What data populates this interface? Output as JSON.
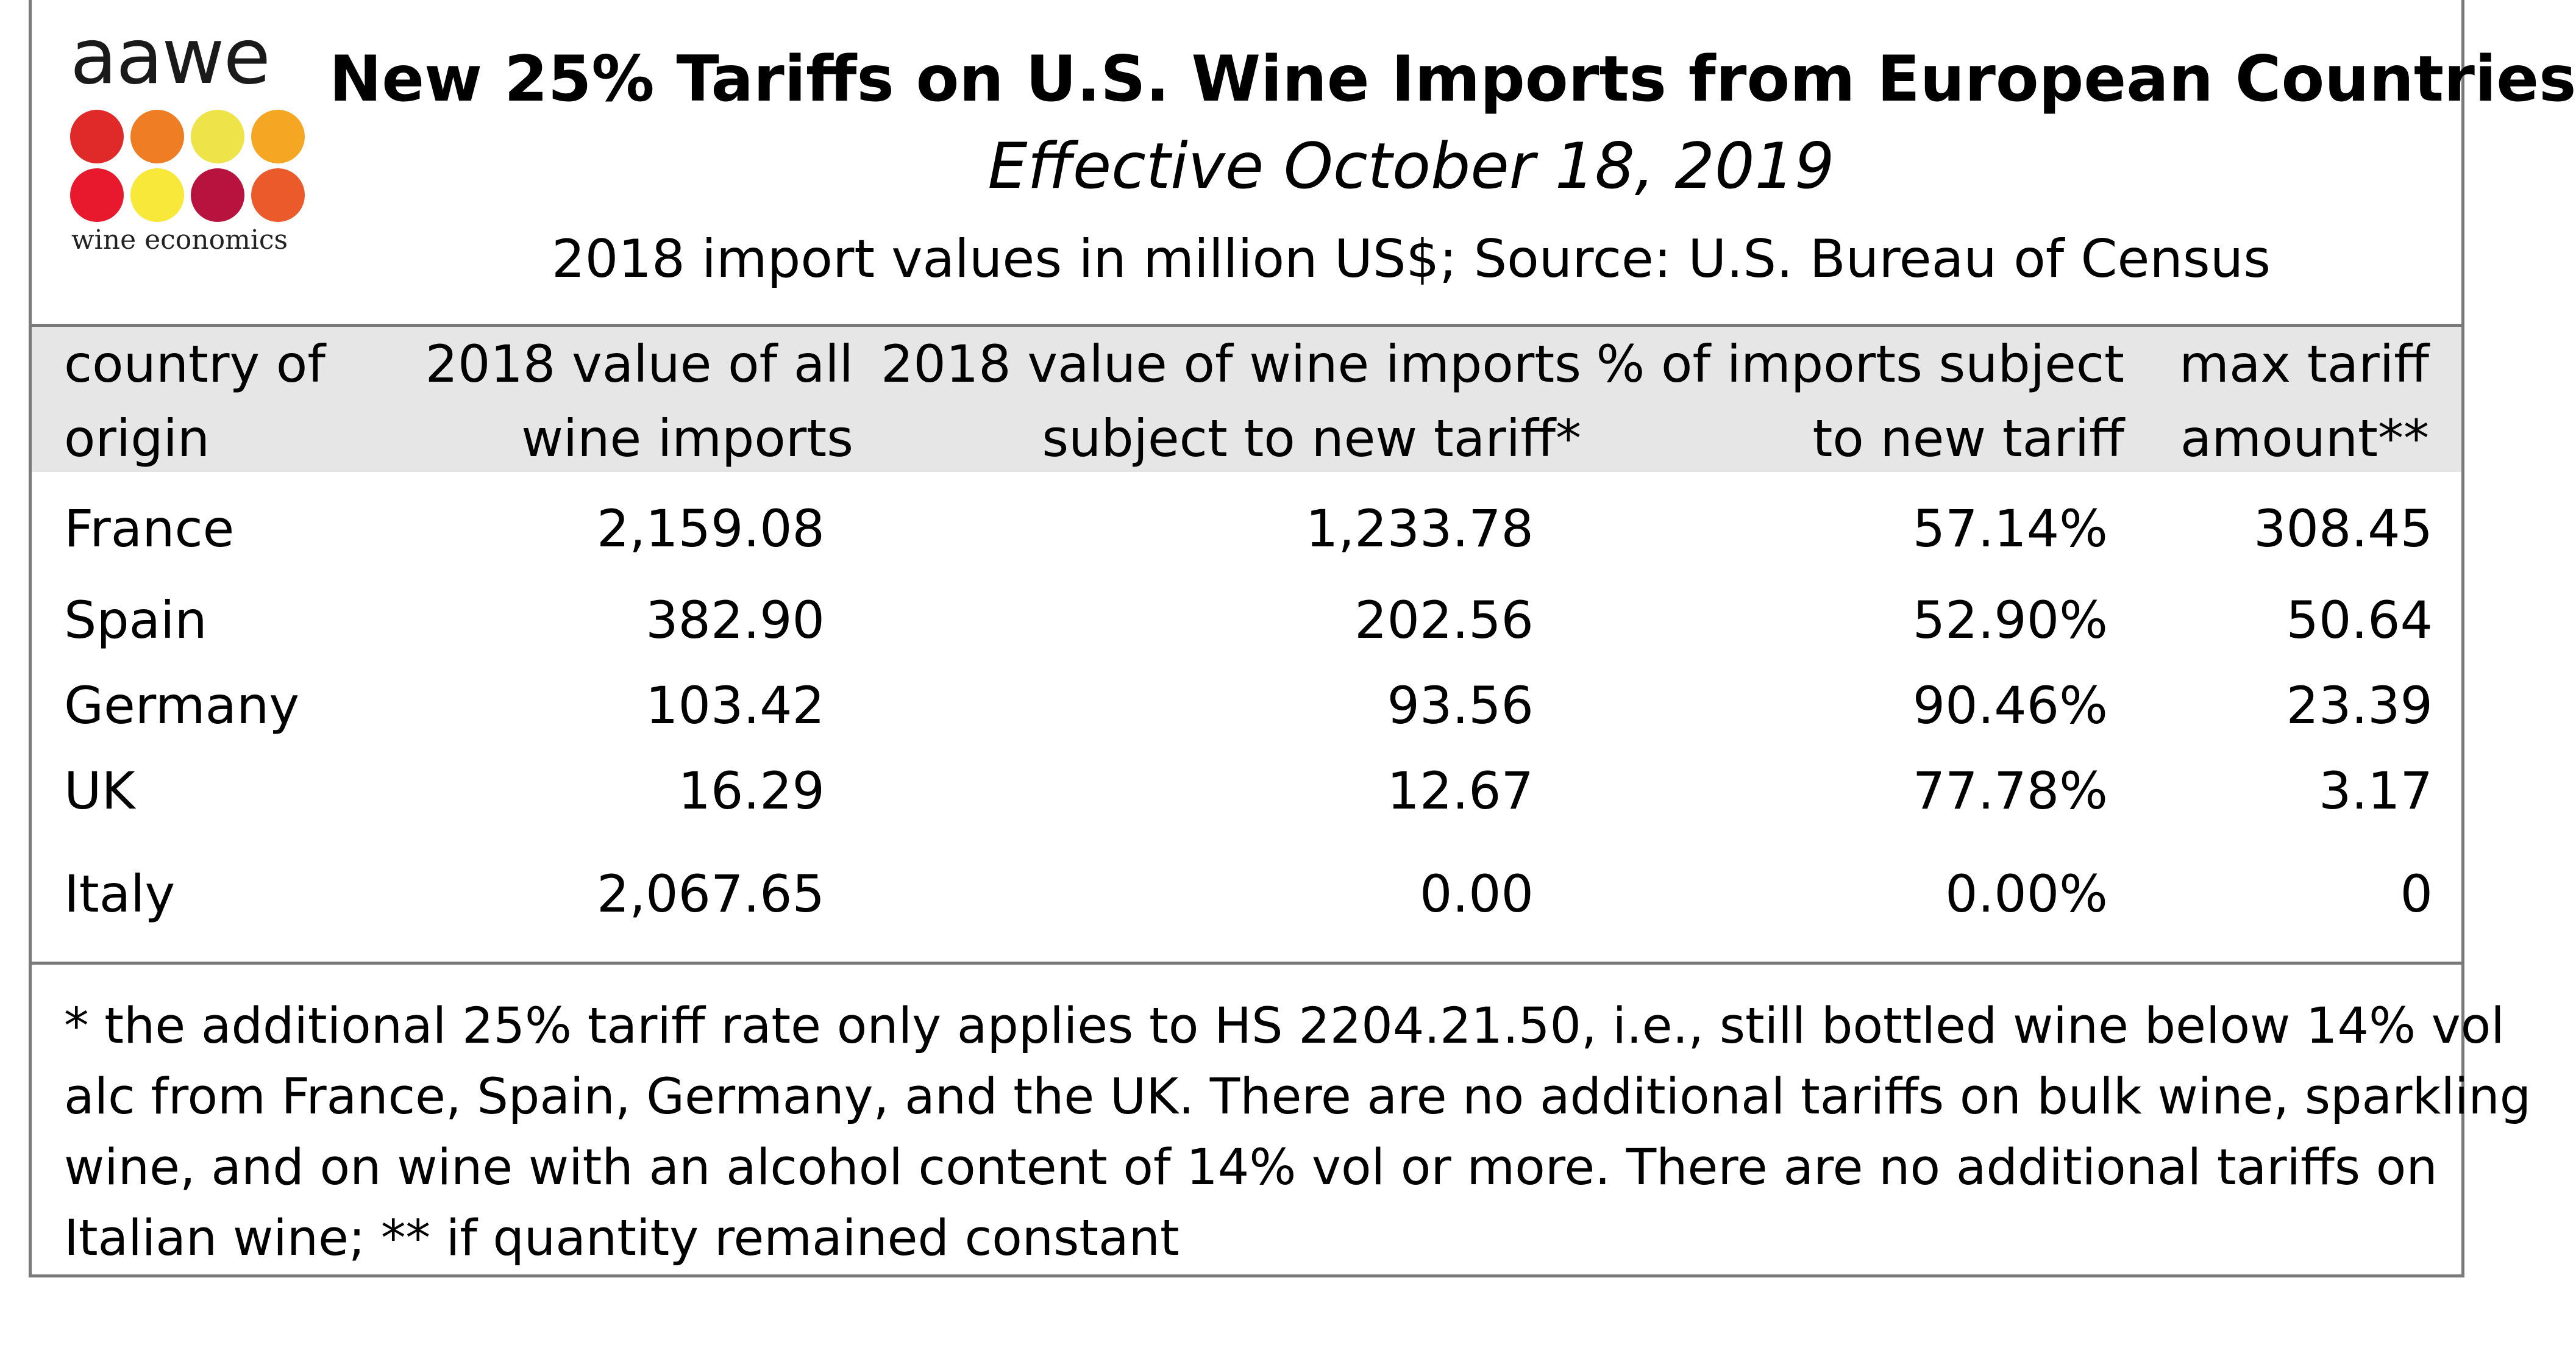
{
  "logo": {
    "wordmark": "aawe",
    "tagline": "wine economics",
    "dot_colors": [
      "#e02a2a",
      "#ef7d24",
      "#eee44a",
      "#f5a623",
      "#e8192c",
      "#f8e83a",
      "#b8123f",
      "#ea5a2a"
    ]
  },
  "header": {
    "title": "New 25% Tariffs on U.S. Wine Imports from European Countries",
    "subtitle": "Effective October 18, 2019",
    "source": "2018 import values in million US$; Source: U.S. Bureau of Census"
  },
  "chart_data": {
    "type": "table",
    "columns": [
      {
        "line1": "country of",
        "line2": "origin"
      },
      {
        "line1": "2018 value of all",
        "line2": "wine imports"
      },
      {
        "line1": "2018 value of wine imports",
        "line2": "subject to new tariff*"
      },
      {
        "line1": "% of imports subject",
        "line2": "to new tariff"
      },
      {
        "line1": "max tariff",
        "line2": "amount**"
      }
    ],
    "rows": [
      [
        "France",
        "2,159.08",
        "1,233.78",
        "57.14%",
        "308.45"
      ],
      [
        "Spain",
        "382.90",
        "202.56",
        "52.90%",
        "50.64"
      ],
      [
        "Germany",
        "103.42",
        "93.56",
        "90.46%",
        "23.39"
      ],
      [
        "UK",
        "16.29",
        "12.67",
        "77.78%",
        "3.17"
      ],
      [
        "Italy",
        "2,067.65",
        "0.00",
        "0.00%",
        "0"
      ]
    ]
  },
  "footnote": {
    "lines": [
      "* the additional 25% tariff rate only applies to HS 2204.21.50, i.e., still bottled wine below 14% vol",
      "alc from France, Spain, Germany, and the UK. There are no additional tariffs on bulk wine, sparkling",
      "wine, and on wine with an alcohol content of 14% vol or more. There are no additional tariffs on",
      "Italian wine; ** if quantity remained constant"
    ]
  }
}
